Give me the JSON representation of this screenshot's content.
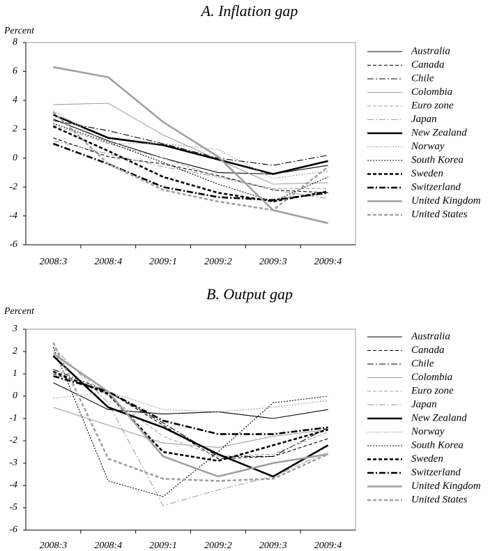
{
  "chart_data": [
    {
      "type": "line",
      "title": "A. Inflation gap",
      "ylabel": "Percent",
      "categories": [
        "2008:3",
        "2008:4",
        "2009:1",
        "2009:2",
        "2009:3",
        "2009:4"
      ],
      "ylim": [
        -6,
        8
      ],
      "yticks": [
        -6,
        -4,
        -2,
        0,
        2,
        4,
        6,
        8
      ],
      "series": [
        {
          "name": "Australia",
          "color": "#000000",
          "style": "solid",
          "weight": "thin",
          "values": [
            2.7,
            1.2,
            0.0,
            -1.0,
            -1.1,
            -0.5
          ]
        },
        {
          "name": "Canada",
          "color": "#000000",
          "style": "dashed",
          "weight": "thin",
          "values": [
            1.4,
            0.1,
            -0.4,
            -1.2,
            -2.2,
            -2.4
          ]
        },
        {
          "name": "Chile",
          "color": "#000000",
          "style": "dashdot",
          "weight": "thin",
          "values": [
            2.6,
            1.9,
            1.0,
            0.0,
            -0.5,
            0.2
          ]
        },
        {
          "name": "Colombia",
          "color": "#a0a0a0",
          "style": "solid",
          "weight": "thin",
          "values": [
            3.7,
            3.8,
            1.6,
            -0.1,
            -1.8,
            -1.7
          ]
        },
        {
          "name": "Euro zone",
          "color": "#a0a0a0",
          "style": "dashed",
          "weight": "thin",
          "values": [
            2.3,
            1.0,
            0.0,
            -1.3,
            -2.1,
            -2.1
          ]
        },
        {
          "name": "Japan",
          "color": "#a0a0a0",
          "style": "dashdot",
          "weight": "thin",
          "values": [
            1.2,
            0.3,
            -0.6,
            -1.3,
            -2.2,
            -2.8
          ]
        },
        {
          "name": "New Zealand",
          "color": "#000000",
          "style": "solid",
          "weight": "thick",
          "values": [
            3.0,
            1.4,
            0.9,
            -0.1,
            -1.1,
            -0.2
          ]
        },
        {
          "name": "Norway",
          "color": "#a0a0a0",
          "style": "dotted",
          "weight": "thin",
          "values": [
            3.3,
            1.0,
            1.0,
            0.6,
            -1.4,
            -0.9
          ]
        },
        {
          "name": "South Korea",
          "color": "#000000",
          "style": "dotted",
          "weight": "thin",
          "values": [
            2.4,
            1.1,
            -0.3,
            -1.8,
            -3.0,
            -1.3
          ]
        },
        {
          "name": "Sweden",
          "color": "#000000",
          "style": "dashed",
          "weight": "thick",
          "values": [
            2.2,
            0.5,
            -1.3,
            -2.4,
            -3.0,
            -2.3
          ]
        },
        {
          "name": "Switzerland",
          "color": "#000000",
          "style": "dashdot",
          "weight": "thick",
          "values": [
            1.0,
            -0.4,
            -2.0,
            -2.7,
            -2.9,
            -2.4
          ]
        },
        {
          "name": "United Kingdom",
          "color": "#a0a0a0",
          "style": "solid",
          "weight": "thick",
          "values": [
            6.3,
            5.6,
            2.5,
            0.1,
            -3.6,
            -4.5
          ]
        },
        {
          "name": "United States",
          "color": "#a0a0a0",
          "style": "dashed",
          "weight": "thick",
          "values": [
            3.2,
            -0.4,
            -2.2,
            -3.0,
            -3.6,
            -0.6
          ]
        }
      ]
    },
    {
      "type": "line",
      "title": "B. Output gap",
      "ylabel": "Percent",
      "categories": [
        "2008:3",
        "2008:4",
        "2009:1",
        "2009:2",
        "2009:3",
        "2009:4"
      ],
      "ylim": [
        -6,
        3
      ],
      "yticks": [
        -6,
        -5,
        -4,
        -3,
        -2,
        -1,
        0,
        1,
        2,
        3
      ],
      "series": [
        {
          "name": "Australia",
          "color": "#000000",
          "style": "solid",
          "weight": "thin",
          "values": [
            0.6,
            -0.6,
            -0.8,
            -0.7,
            -1.0,
            -0.6
          ]
        },
        {
          "name": "Canada",
          "color": "#000000",
          "style": "dashed",
          "weight": "thin",
          "values": [
            1.0,
            0.2,
            -1.3,
            -2.8,
            -2.7,
            -1.9
          ]
        },
        {
          "name": "Chile",
          "color": "#000000",
          "style": "dashdot",
          "weight": "thin",
          "values": [
            1.2,
            0.2,
            -1.2,
            -2.7,
            -2.7,
            -1.4
          ]
        },
        {
          "name": "Colombia",
          "color": "#a0a0a0",
          "style": "solid",
          "weight": "thin",
          "values": [
            -0.5,
            -1.3,
            -2.1,
            -2.3,
            -1.8,
            -1.5
          ]
        },
        {
          "name": "Euro zone",
          "color": "#a0a0a0",
          "style": "dashed",
          "weight": "thin",
          "values": [
            2.0,
            0.0,
            -1.8,
            -2.7,
            -2.6,
            -1.6
          ]
        },
        {
          "name": "Japan",
          "color": "#a0a0a0",
          "style": "dashdot",
          "weight": "thin",
          "values": [
            2.2,
            -0.3,
            -4.9,
            -4.2,
            -3.6,
            -2.5
          ]
        },
        {
          "name": "New Zealand",
          "color": "#000000",
          "style": "solid",
          "weight": "thick",
          "values": [
            1.8,
            -0.5,
            -1.4,
            -2.6,
            -3.6,
            -2.2
          ]
        },
        {
          "name": "Norway",
          "color": "#a0a0a0",
          "style": "dotted",
          "weight": "thin",
          "values": [
            -0.1,
            0.2,
            -0.6,
            -0.7,
            -0.5,
            -0.2
          ]
        },
        {
          "name": "South Korea",
          "color": "#000000",
          "style": "dotted",
          "weight": "thin",
          "values": [
            2.2,
            -3.8,
            -4.5,
            -2.5,
            -0.3,
            0.0
          ]
        },
        {
          "name": "Sweden",
          "color": "#000000",
          "style": "dashed",
          "weight": "thick",
          "values": [
            1.1,
            0.1,
            -2.5,
            -2.9,
            -2.2,
            -1.5
          ]
        },
        {
          "name": "Switzerland",
          "color": "#000000",
          "style": "dashdot",
          "weight": "thick",
          "values": [
            0.9,
            0.2,
            -1.1,
            -1.7,
            -1.7,
            -1.4
          ]
        },
        {
          "name": "United Kingdom",
          "color": "#a0a0a0",
          "style": "solid",
          "weight": "thick",
          "values": [
            1.9,
            0.2,
            -2.7,
            -3.6,
            -3.0,
            -2.6
          ]
        },
        {
          "name": "United States",
          "color": "#a0a0a0",
          "style": "dashed",
          "weight": "thick",
          "values": [
            2.4,
            -2.8,
            -3.7,
            -3.8,
            -3.7,
            -2.6
          ]
        }
      ]
    }
  ]
}
